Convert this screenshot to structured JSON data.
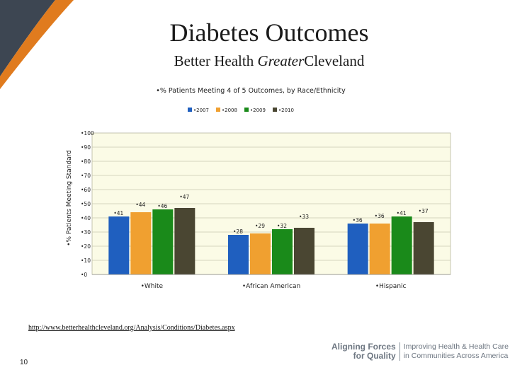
{
  "slide": {
    "title": "Diabetes Outcomes",
    "subtitle_part1": "Better Health ",
    "subtitle_italic": "Greater",
    "subtitle_part2": "Cleveland",
    "source_url": "http://www.betterhealthcleveland.org/Analysis/Conditions/Diabetes.aspx",
    "page_number": "10",
    "logo": {
      "line1": "Aligning Forces",
      "line2": "for Quality",
      "tagline1": "Improving Health & Health Care",
      "tagline2": "in Communities Across America"
    },
    "colors": {
      "swoosh_dark": "#3d4652",
      "swoosh_orange": "#e07b1e",
      "logo_gray": "#6e7782"
    }
  },
  "chart_data": {
    "type": "bar",
    "title": "% Patients Meeting 4 of 5 Outcomes, by Race/Ethnicity",
    "ylabel": "% Patients Meeting Standard",
    "xlabel": "",
    "ylim": [
      0,
      100
    ],
    "yticks": [
      0,
      10,
      20,
      30,
      40,
      50,
      60,
      70,
      80,
      90,
      100
    ],
    "grid": true,
    "legend_position": "top",
    "plot_background": "#fbfbe6",
    "categories": [
      "White",
      "African American",
      "Hispanic"
    ],
    "series": [
      {
        "name": "2007",
        "color": "#1f5fbf",
        "values": [
          41,
          28,
          36
        ]
      },
      {
        "name": "2008",
        "color": "#f0a030",
        "values": [
          44,
          29,
          36
        ]
      },
      {
        "name": "2009",
        "color": "#1a8a1a",
        "values": [
          46,
          32,
          41
        ]
      },
      {
        "name": "2010",
        "color": "#4a4632",
        "values": [
          47,
          33,
          37
        ]
      }
    ]
  }
}
